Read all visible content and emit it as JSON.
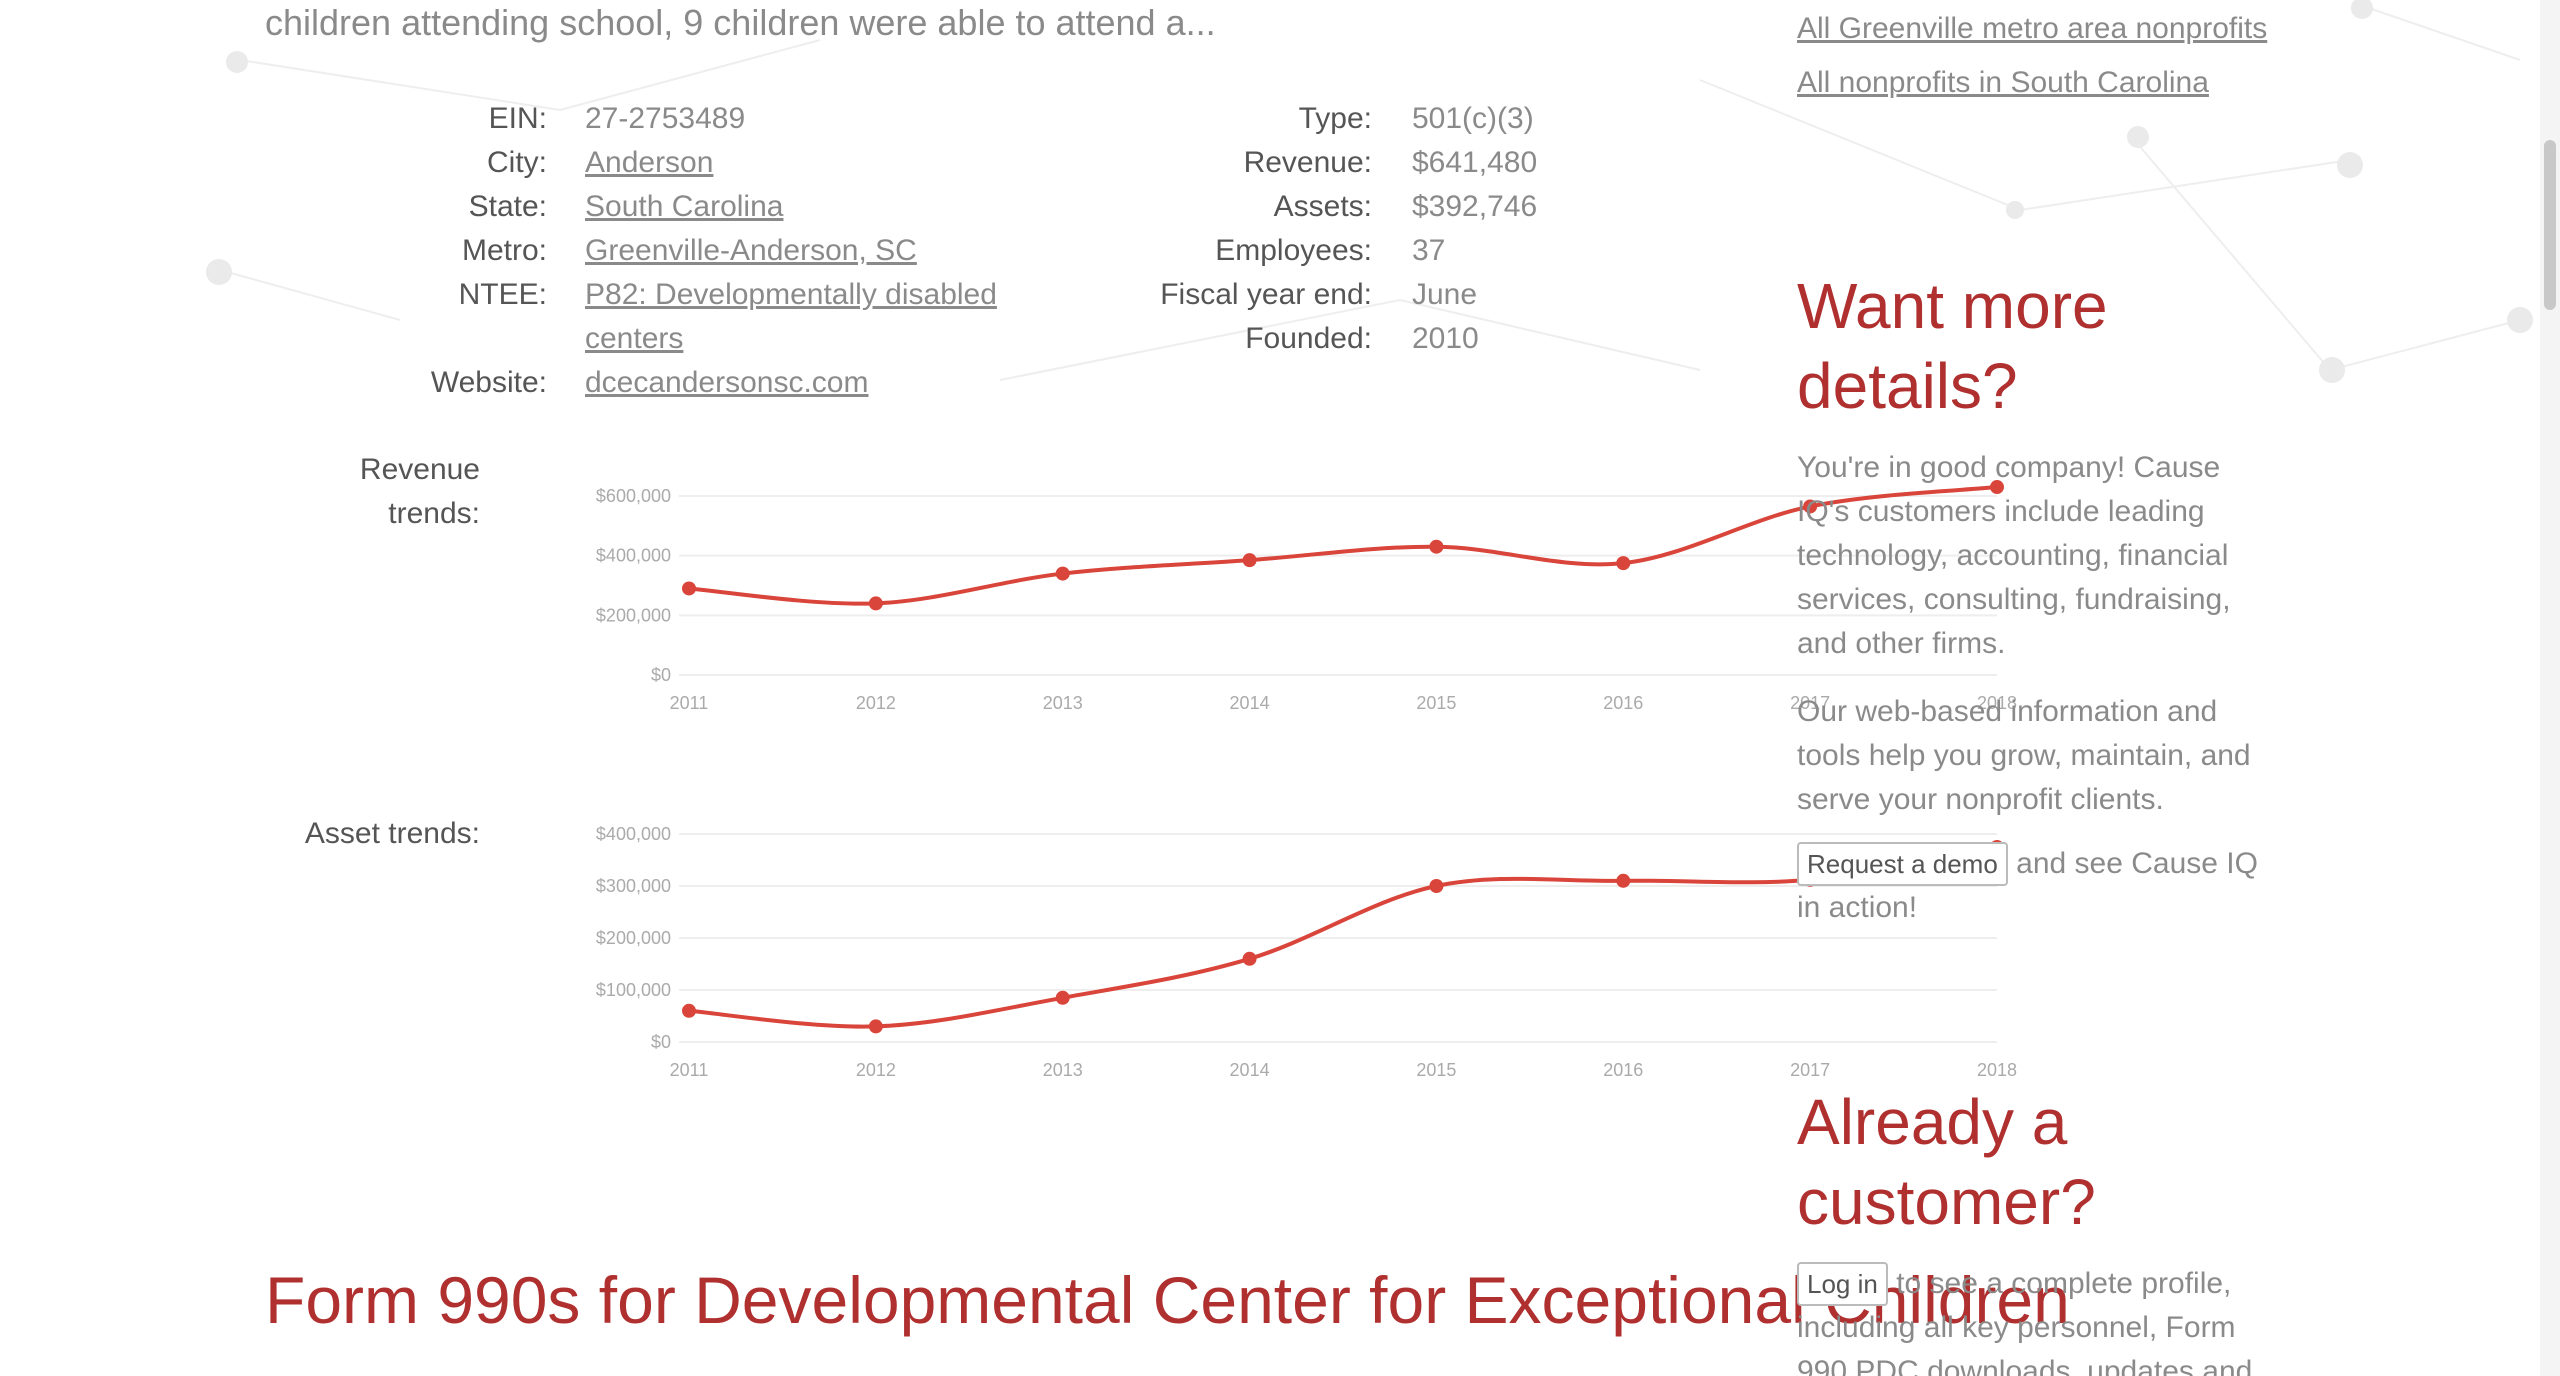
{
  "teaser": "children attending school, 9 children were able to attend a...",
  "facts_left": [
    {
      "label": "EIN:",
      "value": "27-2753489",
      "link": false
    },
    {
      "label": "City:",
      "value": "Anderson",
      "link": true
    },
    {
      "label": "State:",
      "value": "South Carolina",
      "link": true
    },
    {
      "label": "Metro:",
      "value": "Greenville-Anderson, SC",
      "link": true
    },
    {
      "label": "NTEE:",
      "value": "P82: Developmentally disabled centers",
      "link": true
    },
    {
      "label": "Website:",
      "value": "dcecandersonsc.com",
      "link": true
    }
  ],
  "facts_right": [
    {
      "label": "Type:",
      "value": "501(c)(3)"
    },
    {
      "label": "Revenue:",
      "value": "$641,480"
    },
    {
      "label": "Assets:",
      "value": "$392,746"
    },
    {
      "label": "Employees:",
      "value": "37"
    },
    {
      "label": "Fiscal year end:",
      "value": "June"
    },
    {
      "label": "Founded:",
      "value": "2010"
    }
  ],
  "revenue_label": "Revenue trends:",
  "asset_label": "Asset trends:",
  "chart_data": [
    {
      "type": "line",
      "x": [
        "2011",
        "2012",
        "2013",
        "2014",
        "2015",
        "2016",
        "2017",
        "2018"
      ],
      "series": [
        {
          "values": [
            290000,
            240000,
            340000,
            385000,
            430000,
            375000,
            565000,
            630000
          ]
        }
      ],
      "yticks": [
        "$0",
        "$200,000",
        "$400,000",
        "$600,000"
      ],
      "ytick_values": [
        0,
        200000,
        400000,
        600000
      ],
      "ylim": [
        0,
        600000
      ],
      "color": "#d9453a"
    },
    {
      "type": "line",
      "x": [
        "2011",
        "2012",
        "2013",
        "2014",
        "2015",
        "2016",
        "2017",
        "2018"
      ],
      "series": [
        {
          "values": [
            60000,
            30000,
            85000,
            160000,
            300000,
            310000,
            312000,
            375000
          ]
        }
      ],
      "yticks": [
        "$0",
        "$100,000",
        "$200,000",
        "$300,000",
        "$400,000"
      ],
      "ytick_values": [
        0,
        100000,
        200000,
        300000,
        400000
      ],
      "ylim": [
        0,
        400000
      ],
      "color": "#d9453a"
    }
  ],
  "form_title": "Form 990s for Developmental Center for Exceptional Children",
  "sidebar": {
    "links": [
      "All Greenville metro area nonprofits",
      "All nonprofits in South Carolina"
    ],
    "want_heading": "Want more details?",
    "want_p1": "You're in good company! Cause IQ's customers include leading technology, accounting, financial services, consulting, fundraising, and other firms.",
    "want_p2": "Our web-based information and tools help you grow, maintain, and serve your nonprofit clients.",
    "demo_button": "Request a demo",
    "demo_after": "and see Cause IQ in action!",
    "customer_heading": "Already a customer?",
    "login_button": "Log in",
    "login_after": "to see a complete profile, including all key personnel, Form 990 PDC downloads, updates and"
  },
  "colors": {
    "accent": "#b03030",
    "line": "#d9453a"
  }
}
